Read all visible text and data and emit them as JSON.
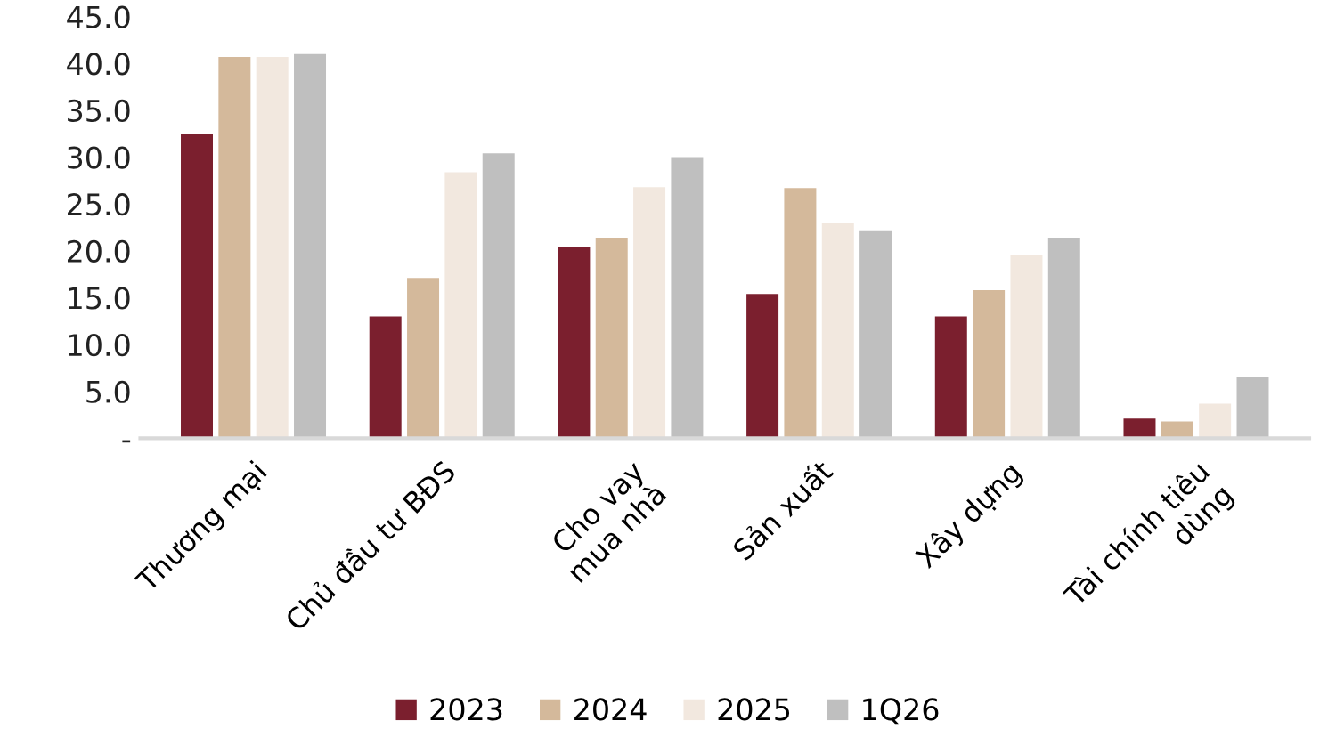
{
  "chart_data": {
    "type": "bar",
    "categories": [
      "Thương mại",
      "Chủ đầu tư BĐS",
      "Cho vay\nmua nhà",
      "Sản xuất",
      "Xây dựng",
      "Tài chính tiêu\ndùng"
    ],
    "series": [
      {
        "name": "2023",
        "color": "#7b1f2e",
        "values": [
          32.5,
          13.0,
          20.4,
          15.4,
          13.0,
          2.1
        ]
      },
      {
        "name": "2024",
        "color": "#d4b99b",
        "values": [
          40.7,
          17.1,
          21.4,
          26.7,
          15.8,
          1.8
        ]
      },
      {
        "name": "2025",
        "color": "#f2e8df",
        "values": [
          40.7,
          28.4,
          26.8,
          23.0,
          19.6,
          3.7
        ]
      },
      {
        "name": "1Q26",
        "color": "#bfbfbf",
        "values": [
          41.0,
          30.4,
          30.0,
          22.2,
          21.4,
          6.6
        ]
      }
    ],
    "ylim": [
      0,
      45
    ],
    "yticks": [
      {
        "value": 0,
        "label": "-"
      },
      {
        "value": 5,
        "label": "5.0"
      },
      {
        "value": 10,
        "label": "10.0"
      },
      {
        "value": 15,
        "label": "15.0"
      },
      {
        "value": 20,
        "label": "20.0"
      },
      {
        "value": 25,
        "label": "25.0"
      },
      {
        "value": 30,
        "label": "30.0"
      },
      {
        "value": 35,
        "label": "35.0"
      },
      {
        "value": 40,
        "label": "40.0"
      },
      {
        "value": 45,
        "label": "45.0"
      }
    ],
    "grid": false,
    "legend": "bottom"
  }
}
